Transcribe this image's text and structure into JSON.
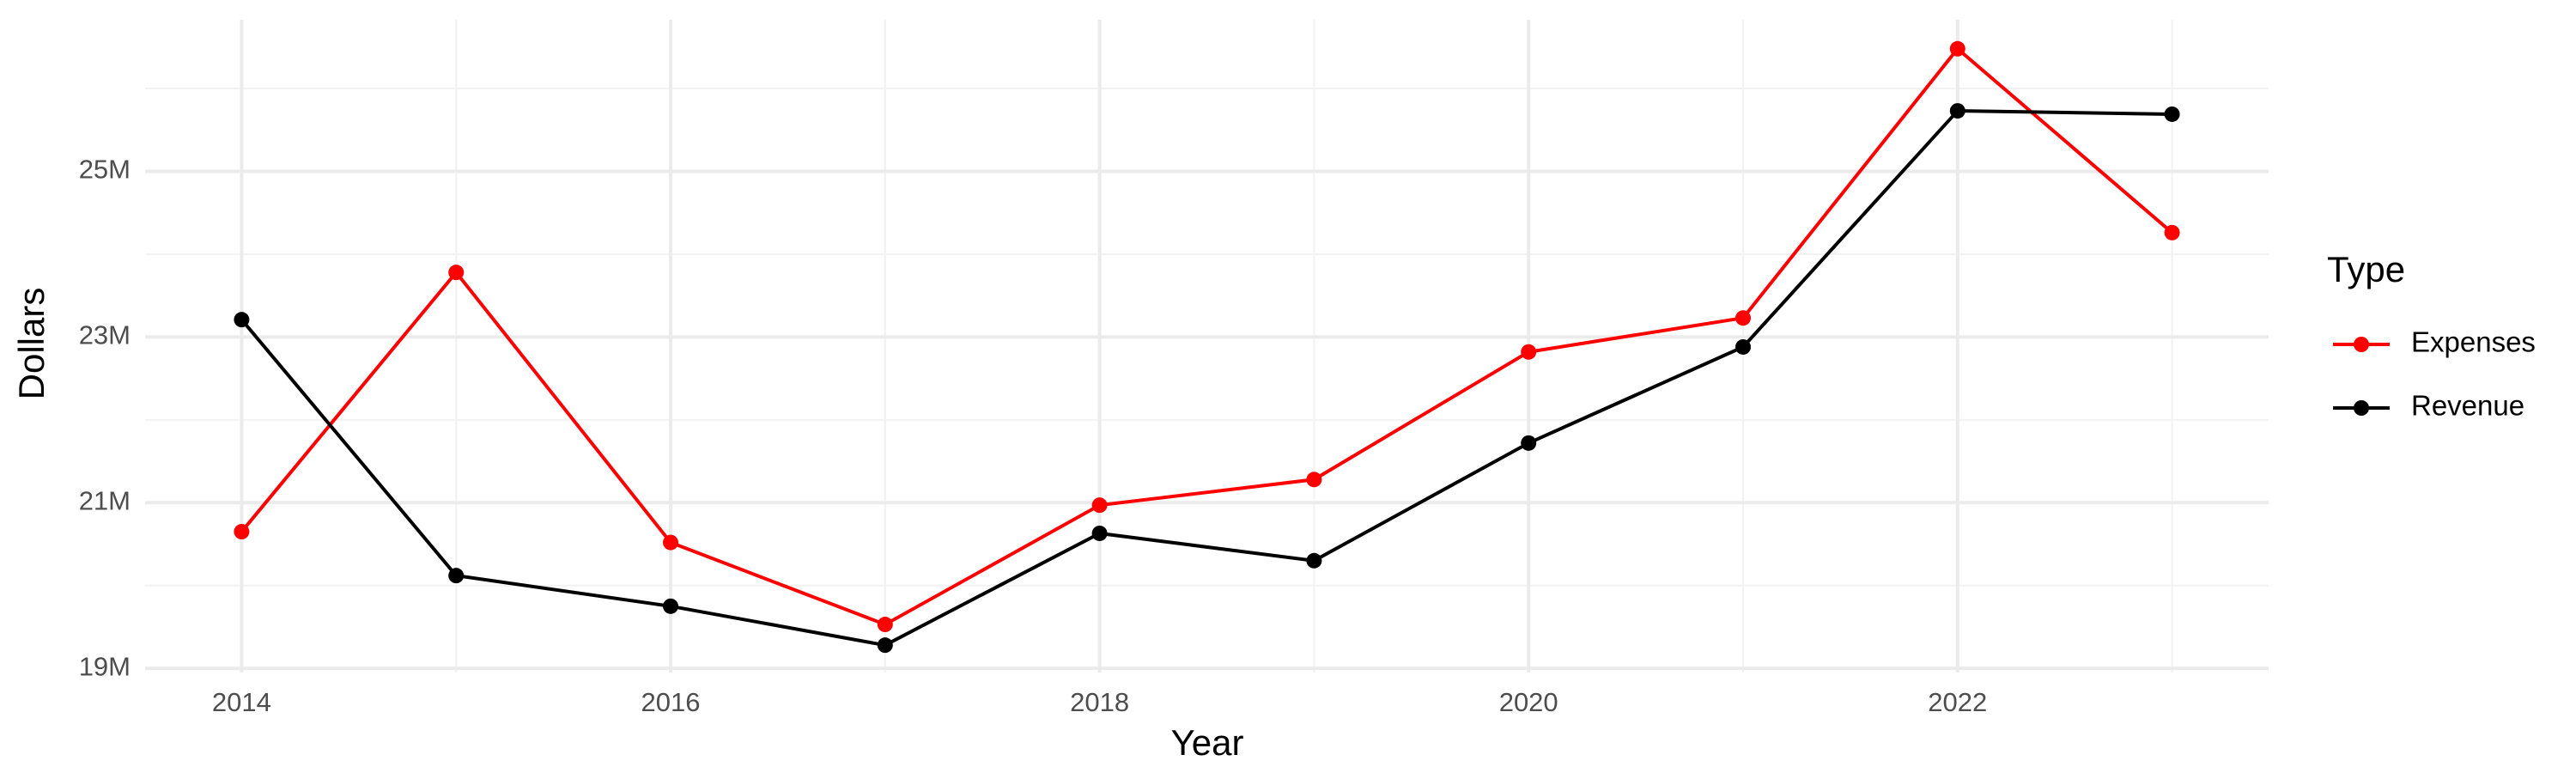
{
  "chart_data": {
    "type": "line",
    "x_label": "Year",
    "y_label": "Dollars",
    "legend_title": "Type",
    "x": [
      2014,
      2015,
      2016,
      2017,
      2018,
      2019,
      2020,
      2021,
      2022,
      2023
    ],
    "series": [
      {
        "name": "Expenses",
        "color": "#ff0000",
        "values": [
          20650000,
          23780000,
          20520000,
          19530000,
          20970000,
          21280000,
          22820000,
          23230000,
          26480000,
          24260000
        ]
      },
      {
        "name": "Revenue",
        "color": "#000000",
        "values": [
          23210000,
          20120000,
          19750000,
          19280000,
          20630000,
          20300000,
          21720000,
          22880000,
          25730000,
          25690000
        ]
      }
    ],
    "xlim": [
      2013.55,
      2023.45
    ],
    "xticks": [
      2014,
      2016,
      2018,
      2020,
      2022
    ],
    "ylim": [
      18950000,
      26830000
    ],
    "yticks": [
      {
        "value": 19000000,
        "label": "19M"
      },
      {
        "value": 21000000,
        "label": "21M"
      },
      {
        "value": 23000000,
        "label": "23M"
      },
      {
        "value": 25000000,
        "label": "25M"
      }
    ],
    "grid": true,
    "legend": "right"
  }
}
